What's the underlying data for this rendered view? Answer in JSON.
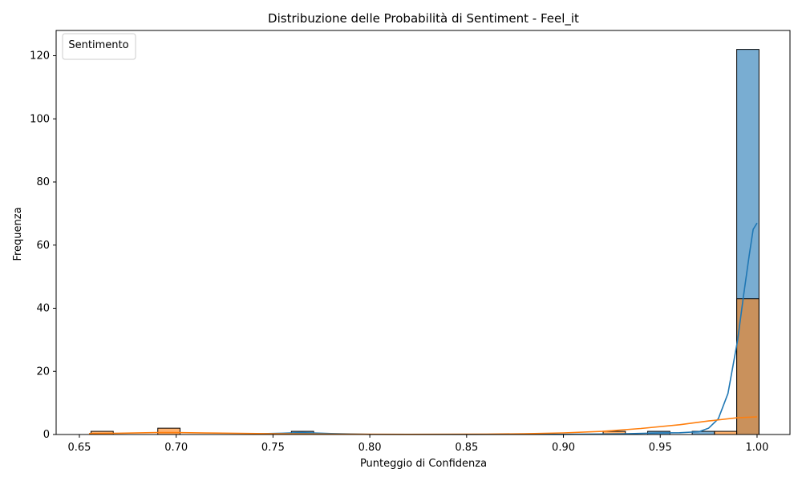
{
  "chart_data": {
    "type": "histogram",
    "title": "Distribuzione delle Probabilità di Sentiment - Feel_it",
    "xlabel": "Punteggio di Confidenza",
    "ylabel": "Frequenza",
    "xlim": [
      0.638,
      1.017
    ],
    "ylim": [
      0,
      128
    ],
    "x_ticks": [
      "0.65",
      "0.70",
      "0.75",
      "0.80",
      "0.85",
      "0.90",
      "0.95",
      "1.00"
    ],
    "y_ticks": [
      "0",
      "20",
      "40",
      "60",
      "80",
      "100",
      "120"
    ],
    "legend": {
      "title": "Sentimento",
      "placement": "upper left"
    },
    "bin_width": 0.0115,
    "series": [
      {
        "color": "#1f77b4",
        "bins": [
          {
            "x0": 0.7595,
            "count": 1
          },
          {
            "x0": 0.9435,
            "count": 1
          },
          {
            "x0": 0.9665,
            "count": 1
          },
          {
            "x0": 0.9895,
            "count": 122
          }
        ],
        "kde": [
          [
            0.74,
            0.2
          ],
          [
            0.755,
            0.4
          ],
          [
            0.765,
            0.6
          ],
          [
            0.78,
            0.3
          ],
          [
            0.8,
            0.05
          ],
          [
            0.85,
            0.02
          ],
          [
            0.9,
            0.05
          ],
          [
            0.93,
            0.2
          ],
          [
            0.95,
            0.5
          ],
          [
            0.96,
            0.55
          ],
          [
            0.97,
            0.9
          ],
          [
            0.975,
            2
          ],
          [
            0.98,
            5
          ],
          [
            0.985,
            13
          ],
          [
            0.99,
            30
          ],
          [
            0.993,
            44
          ],
          [
            0.996,
            57
          ],
          [
            0.998,
            65
          ],
          [
            1.0,
            67
          ]
        ]
      },
      {
        "color": "#ff7f0e",
        "bins": [
          {
            "x0": 0.656,
            "count": 1
          },
          {
            "x0": 0.6905,
            "count": 2
          },
          {
            "x0": 0.9205,
            "count": 1
          },
          {
            "x0": 0.978,
            "count": 1
          },
          {
            "x0": 0.9895,
            "count": 43
          }
        ],
        "kde": [
          [
            0.655,
            0.3
          ],
          [
            0.67,
            0.4
          ],
          [
            0.69,
            0.6
          ],
          [
            0.7,
            0.6
          ],
          [
            0.72,
            0.45
          ],
          [
            0.75,
            0.25
          ],
          [
            0.78,
            0.1
          ],
          [
            0.82,
            0.05
          ],
          [
            0.86,
            0.1
          ],
          [
            0.88,
            0.25
          ],
          [
            0.9,
            0.5
          ],
          [
            0.92,
            1.0
          ],
          [
            0.94,
            1.9
          ],
          [
            0.96,
            3.1
          ],
          [
            0.975,
            4.3
          ],
          [
            0.99,
            5.3
          ],
          [
            1.0,
            5.6
          ]
        ]
      }
    ],
    "overlap_color": "#7a8a8f"
  }
}
